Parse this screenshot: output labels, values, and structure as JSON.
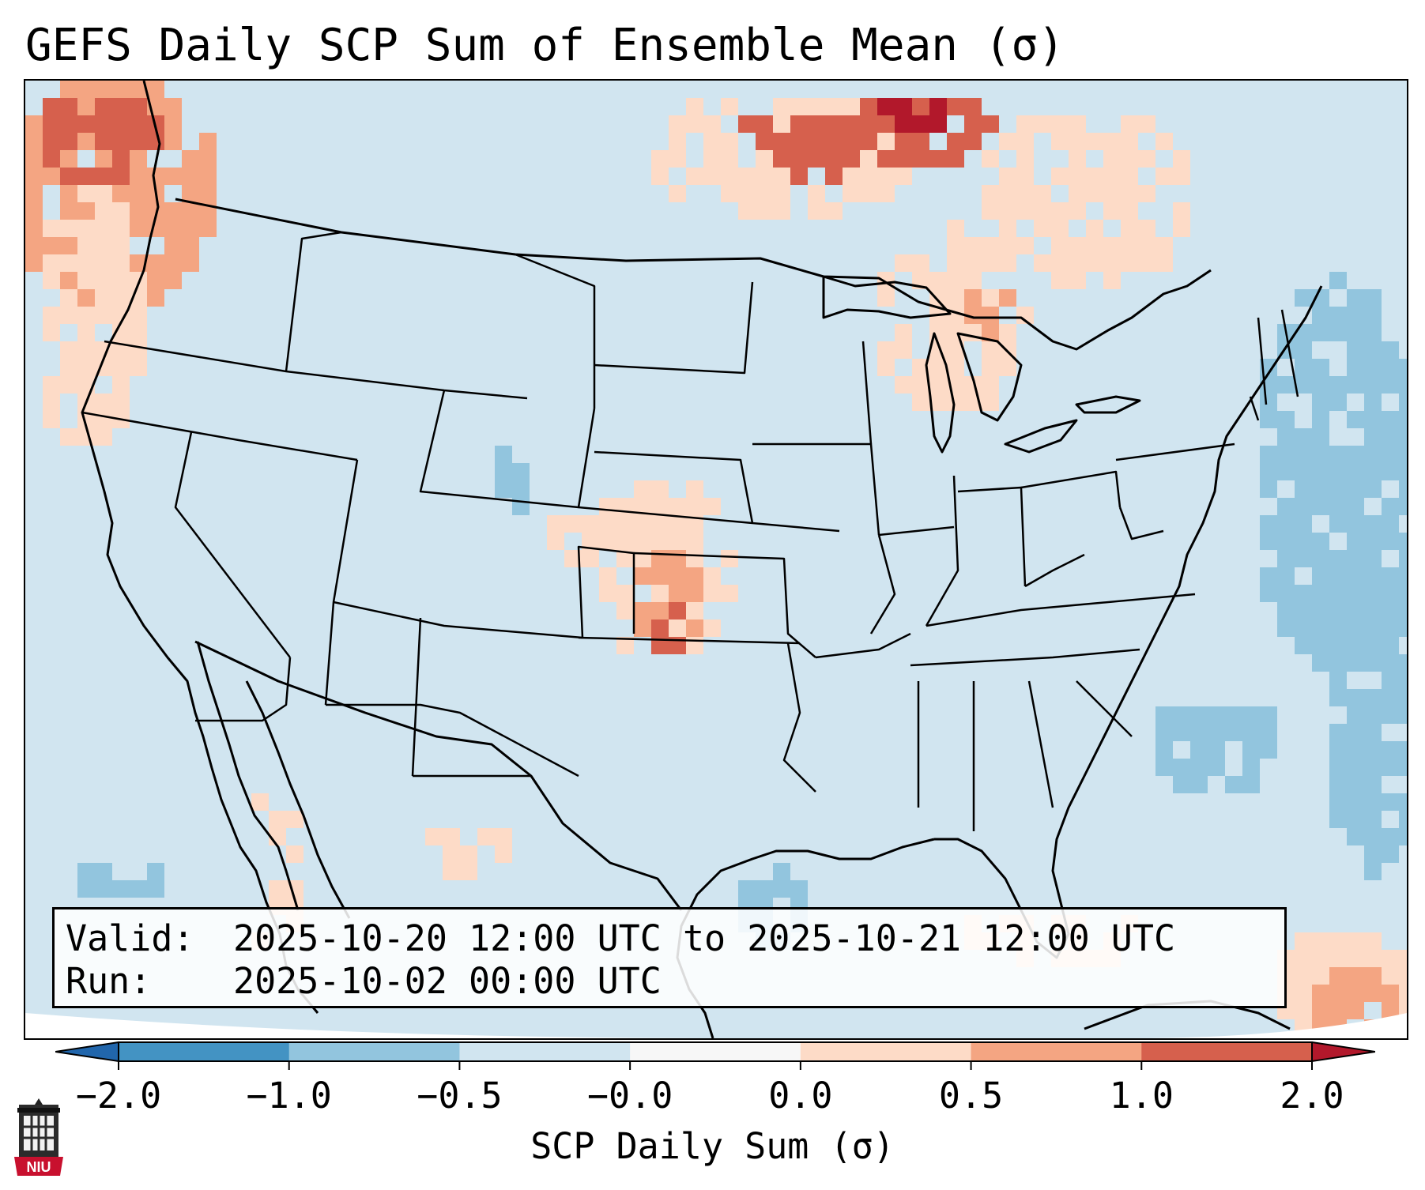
{
  "title": "GEFS Daily SCP Sum of Ensemble Mean (σ)",
  "info": {
    "valid_label": "Valid:",
    "valid_value": "2025-10-20 12:00 UTC to 2025-10-21 12:00 UTC",
    "run_label": "Run:",
    "run_value": "2025-10-02 00:00 UTC"
  },
  "colorbar": {
    "ticks": [
      "−2.0",
      "−1.0",
      "−0.5",
      "−0.0",
      "0.0",
      "0.5",
      "1.0",
      "2.0"
    ],
    "colors": [
      "#4393c3",
      "#92c5de",
      "#d1e5f0",
      "#f7f7f7",
      "#fddbc7",
      "#f4a582",
      "#d6604d"
    ],
    "under_color": "#2166ac",
    "over_color": "#b2182b",
    "label": "SCP Daily Sum (σ)"
  },
  "logo": {
    "text": "NIU",
    "icon": "university-tower-icon"
  },
  "map": {
    "projection": "lambert-conformal",
    "region": "CONUS",
    "background_anomaly_color": "#d1e5f0"
  }
}
